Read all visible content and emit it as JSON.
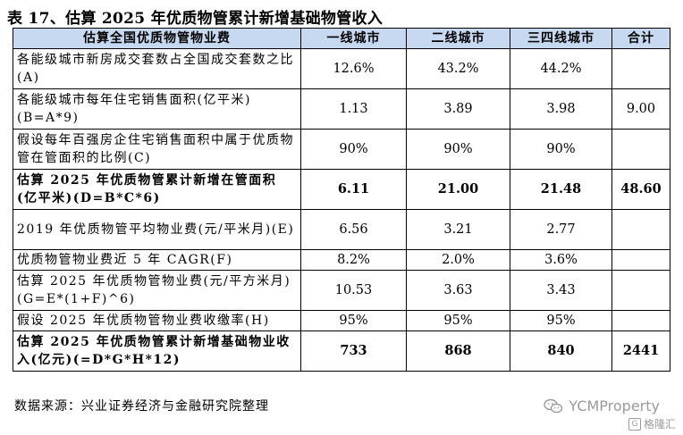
{
  "title": "表 17、估算 2025 年优质物管累计新增基础物管收入",
  "table": {
    "headers": [
      "估算全国优质物管物业费",
      "一线城市",
      "二线城市",
      "三四线城市",
      "合计"
    ],
    "rows": [
      {
        "label": "各能级城市新房成交套数占全国成交套数之比(A)",
        "cells": [
          "12.6%",
          "43.2%",
          "44.2%",
          ""
        ],
        "bold": false
      },
      {
        "label": "各能级城市每年住宅销售面积(亿平米)(B=A*9)",
        "cells": [
          "1.13",
          "3.89",
          "3.98",
          "9.00"
        ],
        "bold": false
      },
      {
        "label": "假设每年百强房企住宅销售面积中属于优质物管在管面积的比例(C)",
        "cells": [
          "90%",
          "90%",
          "90%",
          ""
        ],
        "bold": false
      },
      {
        "label": "估算 2025 年优质物管累计新增在管面积(亿平米)(D=B*C*6)",
        "cells": [
          "6.11",
          "21.00",
          "21.48",
          "48.60"
        ],
        "bold": true
      },
      {
        "label": "2019 年优质物管平均物业费(元/平米月)(E)",
        "cells": [
          "6.56",
          "3.21",
          "2.77",
          ""
        ],
        "bold": false
      },
      {
        "label": "优质物管物业费近 5 年 CAGR(F)",
        "cells": [
          "8.2%",
          "2.0%",
          "3.6%",
          ""
        ],
        "bold": false
      },
      {
        "label": "估算 2025 年优质物管物业费(元/平方米月)(G=E*(1+F)^6)",
        "cells": [
          "10.53",
          "3.63",
          "3.43",
          ""
        ],
        "bold": false
      },
      {
        "label": "假设 2025 年优质物管物业费收缴率(H)",
        "cells": [
          "95%",
          "95%",
          "95%",
          ""
        ],
        "bold": false
      },
      {
        "label": "估算 2025 年优质物管累计新增基础物业收入(亿元)(=D*G*H*12)",
        "cells": [
          "733",
          "868",
          "840",
          "2441"
        ],
        "bold": true
      }
    ]
  },
  "footer": "数据来源：兴业证券经济与金融研究院整理",
  "watermark": {
    "handle": "YCMProperty",
    "brand": "格隆汇",
    "icon": "wechat-icon",
    "brand_icon": "gelonghui-logo-icon"
  },
  "colors": {
    "header_bg": "#c6d9f1",
    "watermark": "#9a9a9a"
  }
}
